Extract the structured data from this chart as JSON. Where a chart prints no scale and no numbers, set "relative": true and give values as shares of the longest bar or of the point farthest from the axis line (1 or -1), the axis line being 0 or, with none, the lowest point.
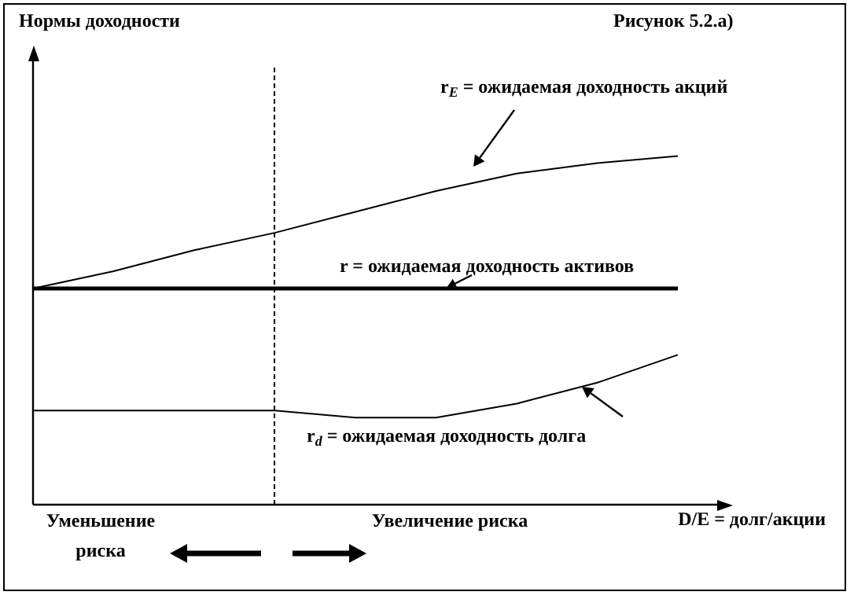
{
  "chart_data": {
    "type": "line",
    "title": "Рисунок 5.2.а)",
    "xlabel": "D/E = долг/акции",
    "relative": true,
    "categories": [
      null,
      null,
      null,
      null,
      null,
      null,
      null,
      null,
      null
    ],
    "legend": false,
    "marker": "none",
    "line_style": "solid",
    "series": [
      {
        "name": "r$_{E}$ = ожидаемая доходность акций",
        "color": "#000000",
        "values": [
          0.62,
          0.67,
          0.73,
          0.78,
          0.84,
          0.9,
          0.95,
          0.98,
          1
        ]
      },
      {
        "name": "r = ожидаемая доходность активов",
        "color": "#000000",
        "values": [
          0.62,
          0.62,
          0.62,
          0.62,
          0.62,
          0.62,
          0.62,
          0.62,
          0.62
        ]
      },
      {
        "name": "r$_{d}$ = ожидаемая доходность долга",
        "color": "#000000",
        "values": [
          0.27,
          0.27,
          0.27,
          0.27,
          0.25,
          0.25,
          0.29,
          0.35,
          0.43
        ]
      }
    ],
    "annotations": [
      "Нормы доходности",
      "Уменьшение риска",
      "Увеличение риска"
    ]
  }
}
